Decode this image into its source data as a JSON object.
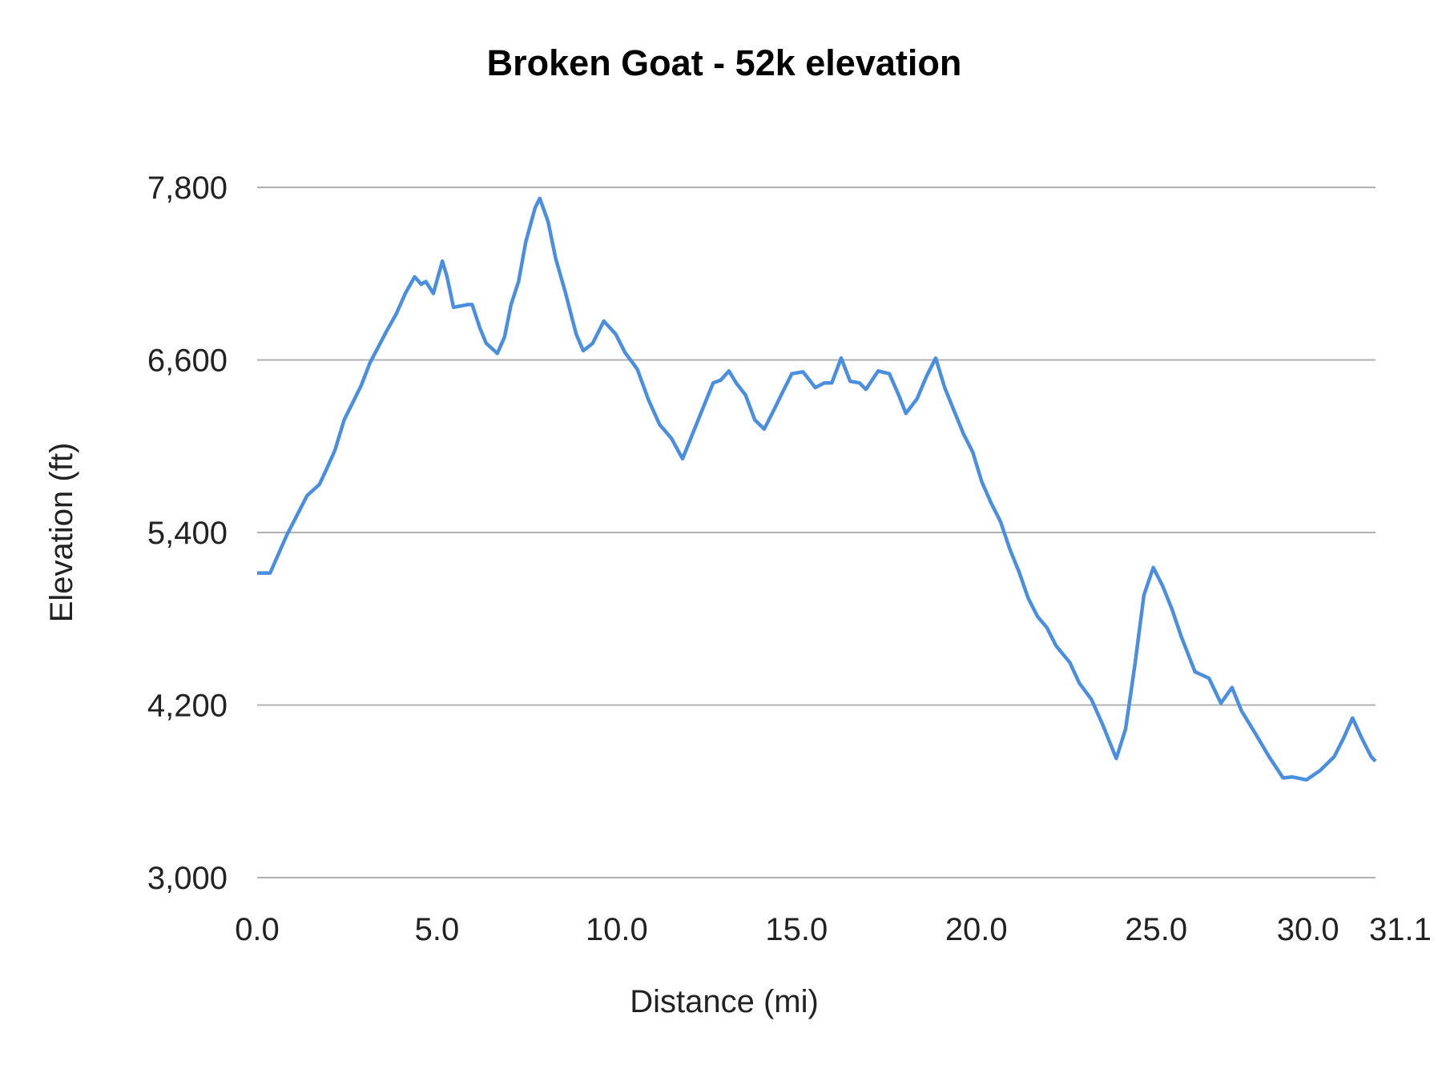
{
  "chart_data": {
    "type": "line",
    "title": "Broken Goat - 52k elevation",
    "xlabel": "Distance (mi)",
    "ylabel": "Elevation (ft)",
    "xlim": [
      0,
      31.1
    ],
    "ylim": [
      3000,
      7800
    ],
    "x_ticks": [
      "0.0",
      "5.0",
      "10.0",
      "15.0",
      "20.0",
      "25.0",
      "30.0",
      "31.1"
    ],
    "x_tick_values": [
      0,
      5,
      10,
      15,
      20,
      25,
      30,
      31.1
    ],
    "y_ticks": [
      "3,000",
      "4,200",
      "5,400",
      "6,600",
      "7,800"
    ],
    "y_tick_values": [
      3000,
      4200,
      5400,
      6600,
      7800
    ],
    "grid": "horizontal",
    "line_color": "#4a8ee0",
    "grid_color": "#b0b0b0",
    "series": [
      {
        "x": [
          0,
          0.36,
          0.82,
          1.39,
          1.73,
          1.91,
          2.16,
          2.42,
          2.89,
          3.14,
          3.61,
          3.87,
          4.12,
          4.38,
          4.56,
          4.69,
          4.9,
          5.15,
          5.28,
          5.46,
          5.85,
          5.98,
          6.19,
          6.37,
          6.68,
          6.88,
          7.06,
          7.27,
          7.47,
          7.73,
          7.86,
          8.09,
          8.3,
          8.56,
          8.87,
          9.07,
          9.33,
          9.64,
          9.97,
          10.23,
          10.57,
          10.88,
          11.19,
          11.52,
          11.83,
          12.11,
          12.42,
          12.68,
          12.89,
          13.12,
          13.32,
          13.58,
          13.84,
          14.1,
          14.36,
          14.61,
          14.87,
          15.18,
          15.52,
          15.77,
          15.98,
          16.24,
          16.49,
          16.75,
          16.93,
          17.27,
          17.58,
          17.84,
          18.04,
          18.35,
          18.61,
          18.87,
          19.12,
          19.38,
          19.64,
          19.9,
          20.15,
          20.41,
          20.67,
          20.93,
          21.19,
          21.44,
          21.7,
          21.96,
          22.22,
          22.6,
          22.86,
          23.2,
          23.51,
          23.89,
          24.15,
          24.41,
          24.66,
          24.92,
          25.18,
          25.44,
          25.7,
          26.08,
          26.47,
          26.8,
          27.11,
          27.37,
          27.76,
          28.14,
          28.53,
          28.79,
          29.18,
          29.56,
          29.95,
          30.21,
          30.46,
          30.72,
          30.98,
          31.1
        ],
        "y": [
          5118,
          5118,
          5380,
          5657,
          5734,
          5830,
          5971,
          6183,
          6420,
          6581,
          6805,
          6921,
          7062,
          7178,
          7126,
          7145,
          7062,
          7287,
          7178,
          6966,
          6985,
          6985,
          6824,
          6716,
          6645,
          6760,
          6985,
          7145,
          7421,
          7659,
          7723,
          7563,
          7306,
          7081,
          6780,
          6664,
          6716,
          6870,
          6780,
          6651,
          6536,
          6324,
          6151,
          6055,
          5913,
          6087,
          6279,
          6440,
          6459,
          6523,
          6440,
          6356,
          6183,
          6119,
          6247,
          6375,
          6504,
          6517,
          6408,
          6440,
          6440,
          6613,
          6452,
          6440,
          6395,
          6523,
          6504,
          6356,
          6228,
          6330,
          6485,
          6613,
          6408,
          6247,
          6087,
          5958,
          5753,
          5605,
          5477,
          5285,
          5124,
          4944,
          4816,
          4739,
          4611,
          4495,
          4354,
          4239,
          4065,
          3828,
          4033,
          4482,
          4964,
          5156,
          5028,
          4867,
          4675,
          4431,
          4386,
          4213,
          4322,
          4161,
          4001,
          3841,
          3693,
          3700,
          3680,
          3745,
          3841,
          3969,
          4110,
          3969,
          3841,
          3809
        ]
      }
    ]
  }
}
